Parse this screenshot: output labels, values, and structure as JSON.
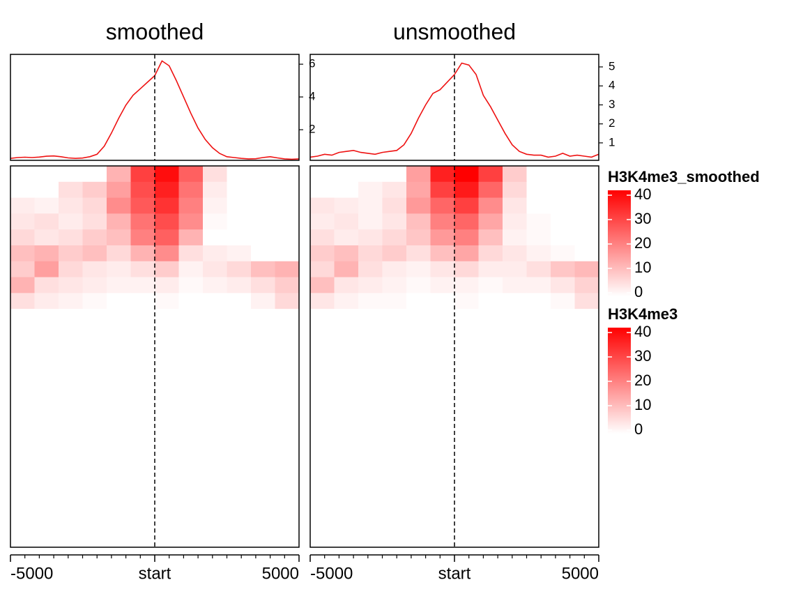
{
  "chart_data": [
    {
      "type": "line",
      "title": "smoothed",
      "x": [
        -5000,
        -4750,
        -4500,
        -4250,
        -4000,
        -3750,
        -3500,
        -3250,
        -3000,
        -2750,
        -2500,
        -2250,
        -2000,
        -1750,
        -1500,
        -1250,
        -1000,
        -750,
        -500,
        -250,
        0,
        250,
        500,
        750,
        1000,
        1250,
        1500,
        1750,
        2000,
        2250,
        2500,
        2750,
        3000,
        3250,
        3500,
        3750,
        4000,
        4250,
        4500,
        4750,
        5000
      ],
      "series": [
        {
          "color": "#ee1111",
          "values": [
            0.25,
            0.3,
            0.32,
            0.3,
            0.33,
            0.38,
            0.4,
            0.35,
            0.28,
            0.25,
            0.27,
            0.35,
            0.5,
            1.0,
            1.8,
            2.7,
            3.5,
            4.1,
            4.5,
            4.9,
            5.3,
            6.2,
            5.9,
            5.0,
            4.0,
            3.0,
            2.1,
            1.4,
            0.9,
            0.55,
            0.35,
            0.3,
            0.25,
            0.22,
            0.23,
            0.3,
            0.35,
            0.28,
            0.22,
            0.2,
            0.22
          ]
        }
      ],
      "xlim": [
        -5000,
        5000
      ],
      "xticks": [
        -5000,
        {
          "value": 0,
          "label": "start"
        },
        5000
      ],
      "minor_xticks": [
        -4500,
        -4000,
        -3500,
        -3000,
        -2500,
        -2000,
        -1500,
        -1000,
        -500,
        500,
        1000,
        1500,
        2000,
        2500,
        3000,
        3500,
        4000,
        4500
      ],
      "vline": 0,
      "ylim": [
        0.13,
        6.6
      ],
      "yticks": [
        2,
        4,
        6
      ],
      "heatmap": {
        "values": [
          [
            0,
            0,
            0,
            0,
            12,
            30,
            38,
            25,
            5,
            0,
            0,
            0
          ],
          [
            0,
            0,
            5,
            8,
            15,
            28,
            35,
            22,
            3,
            0,
            0,
            0
          ],
          [
            3,
            2,
            4,
            6,
            18,
            26,
            32,
            20,
            2,
            0,
            0,
            0
          ],
          [
            4,
            5,
            3,
            5,
            12,
            22,
            28,
            18,
            1,
            0,
            0,
            0
          ],
          [
            6,
            4,
            5,
            8,
            10,
            20,
            25,
            12,
            0,
            0,
            0,
            0
          ],
          [
            10,
            12,
            8,
            10,
            6,
            12,
            18,
            5,
            3,
            2,
            0,
            0
          ],
          [
            8,
            15,
            6,
            4,
            3,
            5,
            8,
            2,
            4,
            6,
            10,
            12
          ],
          [
            12,
            5,
            4,
            3,
            2,
            2,
            3,
            1,
            2,
            3,
            5,
            8
          ],
          [
            5,
            3,
            2,
            1,
            0,
            0,
            1,
            0,
            0,
            0,
            2,
            6
          ],
          [
            0,
            0,
            0,
            0,
            0,
            0,
            0,
            0,
            0,
            0,
            0,
            0
          ],
          [
            0,
            0,
            0,
            0,
            0,
            0,
            0,
            0,
            0,
            0,
            0,
            0
          ],
          [
            0,
            0,
            0,
            0,
            0,
            0,
            0,
            0,
            0,
            0,
            0,
            0
          ],
          [
            0,
            0,
            0,
            0,
            0,
            0,
            0,
            0,
            0,
            0,
            0,
            0
          ],
          [
            0,
            0,
            0,
            0,
            0,
            0,
            0,
            0,
            0,
            0,
            0,
            0
          ],
          [
            0,
            0,
            0,
            0,
            0,
            0,
            0,
            0,
            0,
            0,
            0,
            0
          ],
          [
            0,
            0,
            0,
            0,
            0,
            0,
            0,
            0,
            0,
            0,
            0,
            0
          ],
          [
            0,
            0,
            0,
            0,
            0,
            0,
            0,
            0,
            0,
            0,
            0,
            0
          ],
          [
            0,
            0,
            0,
            0,
            0,
            0,
            0,
            0,
            0,
            0,
            0,
            0
          ],
          [
            0,
            0,
            0,
            0,
            0,
            0,
            0,
            0,
            0,
            0,
            0,
            0
          ],
          [
            0,
            0,
            0,
            0,
            0,
            0,
            0,
            0,
            0,
            0,
            0,
            0
          ],
          [
            0,
            0,
            0,
            0,
            0,
            0,
            0,
            0,
            0,
            0,
            0,
            0
          ],
          [
            0,
            0,
            0,
            0,
            0,
            0,
            0,
            0,
            0,
            0,
            0,
            0
          ],
          [
            0,
            0,
            0,
            0,
            0,
            0,
            0,
            0,
            0,
            0,
            0,
            0
          ],
          [
            0,
            0,
            0,
            0,
            0,
            0,
            0,
            0,
            0,
            0,
            0,
            0
          ]
        ]
      }
    },
    {
      "type": "line",
      "title": "unsmoothed",
      "x": [
        -5000,
        -4750,
        -4500,
        -4250,
        -4000,
        -3750,
        -3500,
        -3250,
        -3000,
        -2750,
        -2500,
        -2250,
        -2000,
        -1750,
        -1500,
        -1250,
        -1000,
        -750,
        -500,
        -250,
        0,
        250,
        500,
        750,
        1000,
        1250,
        1500,
        1750,
        2000,
        2250,
        2500,
        2750,
        3000,
        3250,
        3500,
        3750,
        4000,
        4250,
        4500,
        4750,
        5000
      ],
      "series": [
        {
          "color": "#ee1111",
          "values": [
            0.25,
            0.3,
            0.4,
            0.35,
            0.5,
            0.55,
            0.6,
            0.5,
            0.45,
            0.4,
            0.5,
            0.55,
            0.6,
            0.9,
            1.5,
            2.3,
            3.0,
            3.6,
            3.8,
            4.2,
            4.6,
            5.2,
            5.1,
            4.6,
            3.5,
            2.9,
            2.2,
            1.5,
            0.9,
            0.55,
            0.4,
            0.35,
            0.35,
            0.25,
            0.3,
            0.45,
            0.3,
            0.35,
            0.3,
            0.25,
            0.4
          ]
        }
      ],
      "xlim": [
        -5000,
        5000
      ],
      "xticks": [
        -5000,
        {
          "value": 0,
          "label": "start"
        },
        5000
      ],
      "minor_xticks": [
        -4500,
        -4000,
        -3500,
        -3000,
        -2500,
        -2000,
        -1500,
        -1000,
        -500,
        500,
        1000,
        1500,
        2000,
        2500,
        3000,
        3500,
        4000,
        4500
      ],
      "vline": 0,
      "ylim": [
        0.08,
        5.66
      ],
      "yticks": [
        1,
        2,
        3,
        4,
        5
      ],
      "heatmap": {
        "values": [
          [
            0,
            0,
            0,
            0,
            15,
            35,
            40,
            30,
            8,
            0,
            0,
            0
          ],
          [
            0,
            0,
            2,
            4,
            14,
            30,
            36,
            24,
            6,
            0,
            0,
            0
          ],
          [
            4,
            3,
            2,
            5,
            16,
            24,
            30,
            18,
            4,
            0,
            0,
            0
          ],
          [
            3,
            4,
            2,
            4,
            10,
            20,
            24,
            14,
            3,
            1,
            0,
            0
          ],
          [
            5,
            3,
            4,
            6,
            9,
            16,
            20,
            10,
            2,
            1,
            0,
            0
          ],
          [
            8,
            10,
            6,
            8,
            5,
            10,
            14,
            6,
            4,
            2,
            1,
            0
          ],
          [
            6,
            12,
            5,
            3,
            2,
            4,
            6,
            3,
            3,
            5,
            9,
            11
          ],
          [
            10,
            4,
            3,
            2,
            1,
            2,
            2,
            1,
            2,
            2,
            4,
            7
          ],
          [
            4,
            2,
            1,
            1,
            0,
            0,
            1,
            0,
            0,
            0,
            1,
            5
          ],
          [
            0,
            0,
            0,
            0,
            0,
            0,
            0,
            0,
            0,
            0,
            0,
            0
          ],
          [
            0,
            0,
            0,
            0,
            0,
            0,
            0,
            0,
            0,
            0,
            0,
            0
          ],
          [
            0,
            0,
            0,
            0,
            0,
            0,
            0,
            0,
            0,
            0,
            0,
            0
          ],
          [
            0,
            0,
            0,
            0,
            0,
            0,
            0,
            0,
            0,
            0,
            0,
            0
          ],
          [
            0,
            0,
            0,
            0,
            0,
            0,
            0,
            0,
            0,
            0,
            0,
            0
          ],
          [
            0,
            0,
            0,
            0,
            0,
            0,
            0,
            0,
            0,
            0,
            0,
            0
          ],
          [
            0,
            0,
            0,
            0,
            0,
            0,
            0,
            0,
            0,
            0,
            0,
            0
          ],
          [
            0,
            0,
            0,
            0,
            0,
            0,
            0,
            0,
            0,
            0,
            0,
            0
          ],
          [
            0,
            0,
            0,
            0,
            0,
            0,
            0,
            0,
            0,
            0,
            0,
            0
          ],
          [
            0,
            0,
            0,
            0,
            0,
            0,
            0,
            0,
            0,
            0,
            0,
            0
          ],
          [
            0,
            0,
            0,
            0,
            0,
            0,
            0,
            0,
            0,
            0,
            0,
            0
          ],
          [
            0,
            0,
            0,
            0,
            0,
            0,
            0,
            0,
            0,
            0,
            0,
            0
          ],
          [
            0,
            0,
            0,
            0,
            0,
            0,
            0,
            0,
            0,
            0,
            0,
            0
          ],
          [
            0,
            0,
            0,
            0,
            0,
            0,
            0,
            0,
            0,
            0,
            0,
            0
          ],
          [
            0,
            0,
            0,
            0,
            0,
            0,
            0,
            0,
            0,
            0,
            0,
            0
          ]
        ]
      }
    }
  ],
  "legends": [
    {
      "title": "H3K4me3_smoothed",
      "range": [
        0,
        40
      ],
      "ticks": [
        0,
        10,
        20,
        30,
        40
      ],
      "colors": [
        "#ffffff",
        "#ff0000"
      ]
    },
    {
      "title": "H3K4me3",
      "range": [
        0,
        40
      ],
      "ticks": [
        0,
        10,
        20,
        30,
        40
      ],
      "colors": [
        "#ffffff",
        "#ff0000"
      ]
    }
  ]
}
